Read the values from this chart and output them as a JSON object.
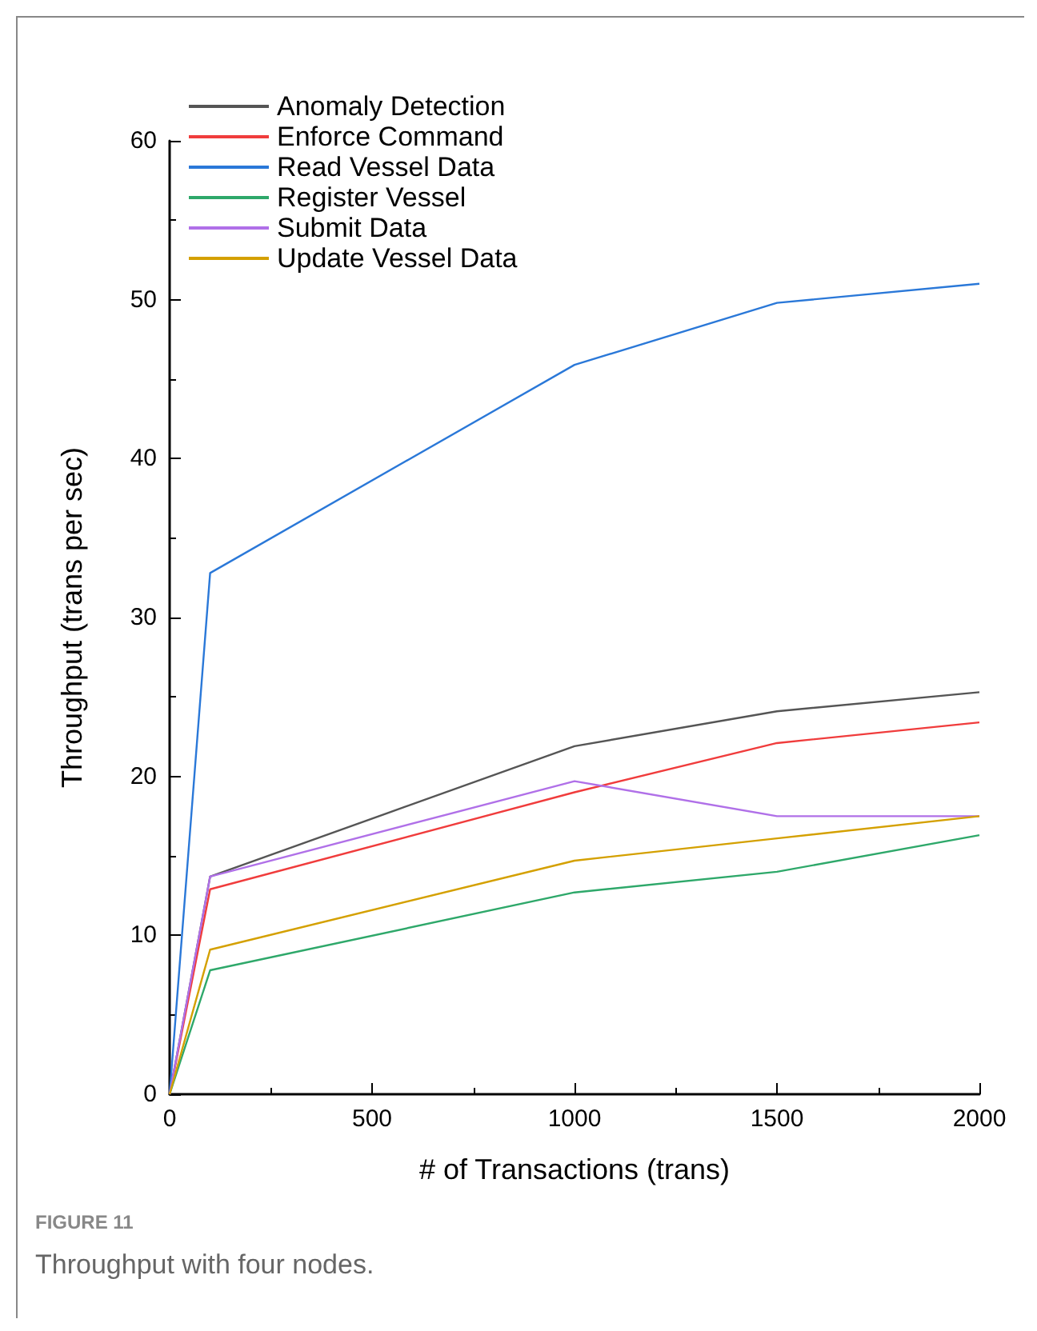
{
  "chart_data": {
    "type": "line",
    "xlabel": "# of Transactions (trans)",
    "ylabel": "Throughput (trans per sec)",
    "x": [
      0,
      100,
      1000,
      1500,
      2000
    ],
    "series": [
      {
        "name": "Anomaly Detection",
        "color": "#555555",
        "values": [
          0,
          13.7,
          21.9,
          24.1,
          25.3
        ]
      },
      {
        "name": "Enforce Command",
        "color": "#f03c3c",
        "values": [
          0,
          12.9,
          19.0,
          22.1,
          23.4
        ]
      },
      {
        "name": "Read Vessel Data",
        "color": "#2a78d8",
        "values": [
          0,
          32.8,
          45.9,
          49.8,
          51.0
        ]
      },
      {
        "name": "Register Vessel",
        "color": "#2ea86a",
        "values": [
          0,
          7.8,
          12.7,
          14.0,
          16.3
        ]
      },
      {
        "name": "Submit Data",
        "color": "#b070e8",
        "values": [
          0,
          13.7,
          19.7,
          17.5,
          17.5
        ]
      },
      {
        "name": "Update Vessel Data",
        "color": "#d4a000",
        "values": [
          0,
          9.1,
          14.7,
          16.1,
          17.5
        ]
      }
    ],
    "xlim": [
      0,
      2000
    ],
    "xticks": [
      0,
      500,
      1000,
      1500,
      2000
    ],
    "ylim": [
      0,
      60
    ],
    "yticks": [
      0,
      10,
      20,
      30,
      40,
      50,
      60
    ],
    "grid": false,
    "legend": "top left",
    "marker": "none",
    "line_style": "solid",
    "annotations": [
      "FIGURE 11",
      "Throughput with four nodes."
    ]
  }
}
